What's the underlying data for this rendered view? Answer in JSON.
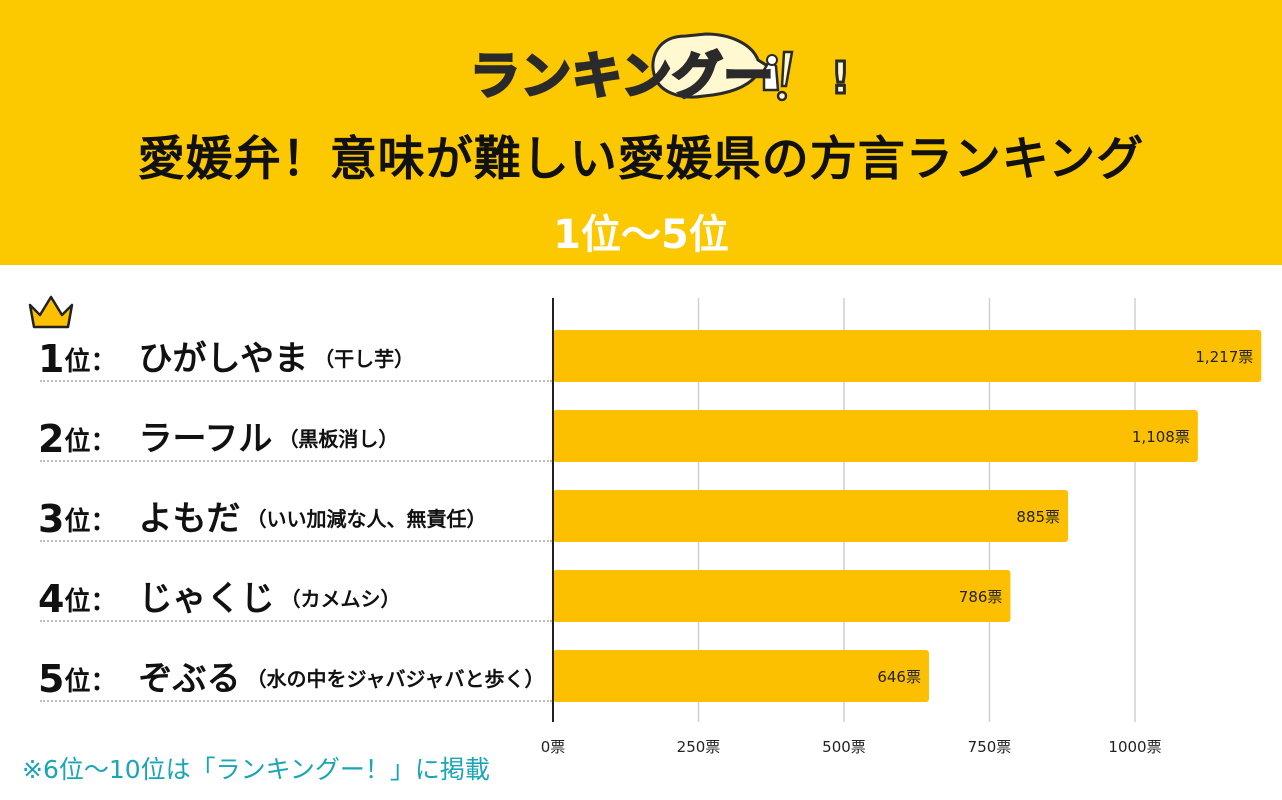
{
  "logo": {
    "text": "ランキング",
    "text2": "ー",
    "mark": "!"
  },
  "title": "愛媛弁！意味が難しい愛媛県の方言ランキング",
  "subtitle": "1位〜5位",
  "crown_icon": "crown-icon",
  "rows": [
    {
      "rank": "1",
      "suffix": "位：",
      "word": "ひがしやま",
      "meaning": "（干し芋）"
    },
    {
      "rank": "2",
      "suffix": "位：",
      "word": "ラーフル",
      "meaning": "（黒板消し）"
    },
    {
      "rank": "3",
      "suffix": "位：",
      "word": "よもだ",
      "meaning": "（いい加減な人、無責任）"
    },
    {
      "rank": "4",
      "suffix": "位：",
      "word": "じゃくじ",
      "meaning": "（カメムシ）"
    },
    {
      "rank": "5",
      "suffix": "位：",
      "word": "ぞぶる",
      "meaning": "（水の中をジャバジャバと歩く）"
    }
  ],
  "chart_data": {
    "type": "bar",
    "orientation": "horizontal",
    "categories": [
      "ひがしやま",
      "ラーフル",
      "よもだ",
      "じゃくじ",
      "ぞぶる"
    ],
    "values": [
      1217,
      1108,
      885,
      786,
      646
    ],
    "value_labels": [
      "1,217票",
      "1,108票",
      "885票",
      "786票",
      "646票"
    ],
    "ticks": [
      0,
      250,
      500,
      750,
      1000
    ],
    "tick_labels": [
      "0票",
      "250票",
      "500票",
      "750票",
      "1000票"
    ],
    "xlim": [
      0,
      1220
    ],
    "grid": true,
    "bar_color": "#fcc000"
  },
  "footnote": "※6位〜10位は「ランキングー！」に掲載",
  "colors": {
    "header": "#fcc800",
    "bar": "#fcc000",
    "footnote": "#1aa6b7"
  }
}
